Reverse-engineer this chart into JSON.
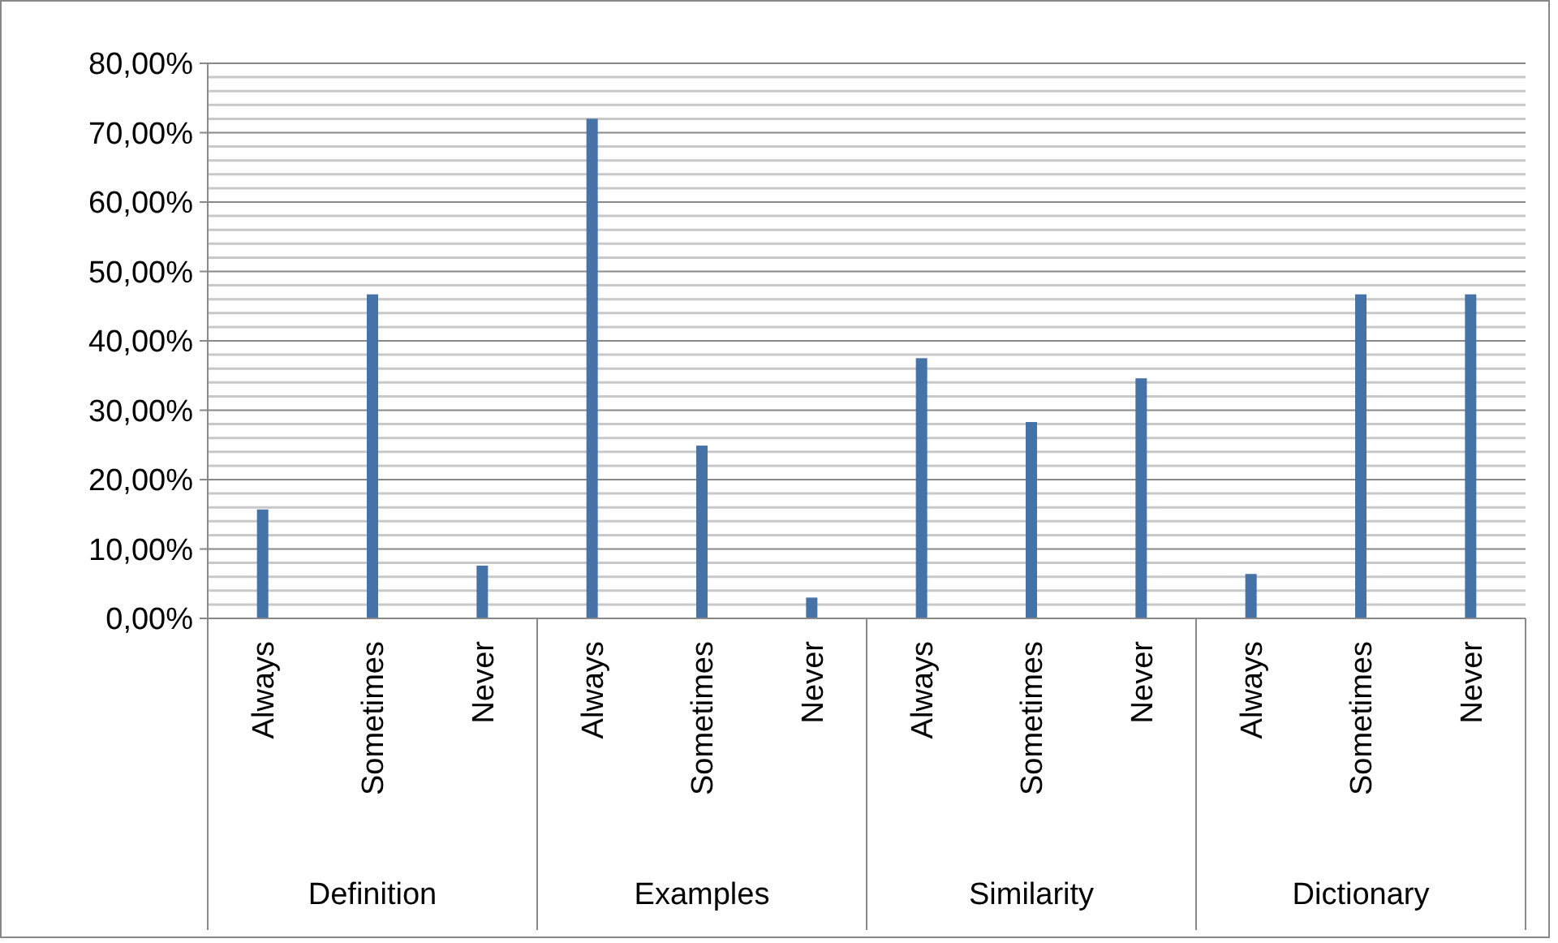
{
  "chart_data": {
    "type": "bar",
    "categories": [
      "Always",
      "Sometimes",
      "Never",
      "Always",
      "Sometimes",
      "Never",
      "Always",
      "Sometimes",
      "Never",
      "Always",
      "Sometimes",
      "Never"
    ],
    "values": [
      15.7,
      46.7,
      7.6,
      72.0,
      24.9,
      3.0,
      37.5,
      28.3,
      34.6,
      6.4,
      46.7,
      46.7
    ],
    "color": "#4572a7",
    "annotations": [
      "Definition",
      "Examples",
      "Similarity",
      "Dictionary"
    ],
    "ylim": [
      0,
      80
    ],
    "yticks": [
      {
        "value": 0,
        "label": "0,00%"
      },
      {
        "value": 2,
        "label": null
      },
      {
        "value": 4,
        "label": null
      },
      {
        "value": 6,
        "label": null
      },
      {
        "value": 8,
        "label": null
      },
      {
        "value": 10,
        "label": "10,00%"
      },
      {
        "value": 12,
        "label": null
      },
      {
        "value": 14,
        "label": null
      },
      {
        "value": 16,
        "label": null
      },
      {
        "value": 18,
        "label": null
      },
      {
        "value": 20,
        "label": "20,00%"
      },
      {
        "value": 22,
        "label": null
      },
      {
        "value": 24,
        "label": null
      },
      {
        "value": 26,
        "label": null
      },
      {
        "value": 28,
        "label": null
      },
      {
        "value": 30,
        "label": "30,00%"
      },
      {
        "value": 32,
        "label": null
      },
      {
        "value": 34,
        "label": null
      },
      {
        "value": 36,
        "label": null
      },
      {
        "value": 38,
        "label": null
      },
      {
        "value": 40,
        "label": "40,00%"
      },
      {
        "value": 42,
        "label": null
      },
      {
        "value": 44,
        "label": null
      },
      {
        "value": 46,
        "label": null
      },
      {
        "value": 48,
        "label": null
      },
      {
        "value": 50,
        "label": "50,00%"
      },
      {
        "value": 52,
        "label": null
      },
      {
        "value": 54,
        "label": null
      },
      {
        "value": 56,
        "label": null
      },
      {
        "value": 58,
        "label": null
      },
      {
        "value": 60,
        "label": "60,00%"
      },
      {
        "value": 62,
        "label": null
      },
      {
        "value": 64,
        "label": null
      },
      {
        "value": 66,
        "label": null
      },
      {
        "value": 68,
        "label": null
      },
      {
        "value": 70,
        "label": "70,00%"
      },
      {
        "value": 72,
        "label": null
      },
      {
        "value": 74,
        "label": null
      },
      {
        "value": 76,
        "label": null
      },
      {
        "value": 78,
        "label": null
      },
      {
        "value": 80,
        "label": "80,00%"
      }
    ],
    "grid": true
  }
}
